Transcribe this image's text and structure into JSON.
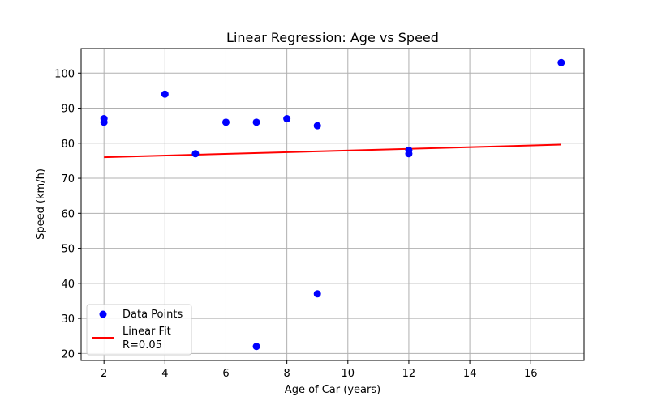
{
  "chart_data": {
    "type": "scatter",
    "title": "Linear Regression: Age vs Speed",
    "xlabel": "Age of Car (years)",
    "ylabel": "Speed (km/h)",
    "xlim": [
      1.25,
      17.75
    ],
    "ylim": [
      18.0,
      107.0
    ],
    "xticks": [
      2,
      4,
      6,
      8,
      10,
      12,
      14,
      16
    ],
    "yticks": [
      20,
      30,
      40,
      50,
      60,
      70,
      80,
      90,
      100
    ],
    "grid": true,
    "legend_position": "lower-left",
    "series": [
      {
        "name": "Data Points",
        "kind": "scatter",
        "color": "#0000ff",
        "points": [
          {
            "x": 2,
            "y": 87
          },
          {
            "x": 2,
            "y": 86
          },
          {
            "x": 4,
            "y": 94
          },
          {
            "x": 5,
            "y": 77
          },
          {
            "x": 6,
            "y": 86
          },
          {
            "x": 7,
            "y": 86
          },
          {
            "x": 7,
            "y": 22
          },
          {
            "x": 8,
            "y": 87
          },
          {
            "x": 9,
            "y": 85
          },
          {
            "x": 9,
            "y": 37
          },
          {
            "x": 12,
            "y": 78
          },
          {
            "x": 12,
            "y": 77
          },
          {
            "x": 17,
            "y": 103
          }
        ]
      },
      {
        "name": "Linear Fit",
        "name_line2": "R=0.05",
        "kind": "line",
        "color": "#ff0000",
        "points": [
          {
            "x": 2,
            "y": 76.0
          },
          {
            "x": 17,
            "y": 79.6
          }
        ]
      }
    ]
  }
}
